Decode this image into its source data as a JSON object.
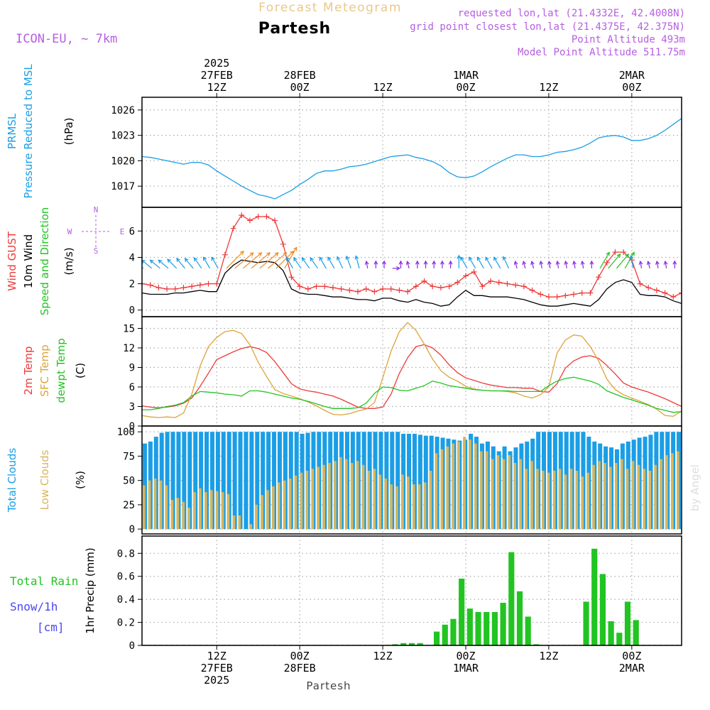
{
  "header": {
    "subtitle": "Forecast Meteogram",
    "location": "Partesh",
    "model": "ICON-EU, ~ 7km",
    "requested": "requested lon,lat (21.4332E, 42.4008N)",
    "grid_point": "grid point closest lon,lat (21.4375E, 42.375N)",
    "point_altitude": "Point Altitude 493m",
    "model_altitude": "Model Point Altitude 511.75m",
    "credit": "by Angel",
    "footer_location": "Partesh"
  },
  "time_axis": {
    "start_hour": 0,
    "end_hour": 65,
    "unit_note": "hours after 2025-02-27 00Z (approx.)",
    "top_labels": [
      {
        "hour": 9,
        "lines": [
          "2025",
          "27FEB",
          "12Z"
        ]
      },
      {
        "hour": 19,
        "lines": [
          "28FEB",
          "00Z"
        ]
      },
      {
        "hour": 29,
        "lines": [
          "12Z"
        ]
      },
      {
        "hour": 39,
        "lines": [
          "1MAR",
          "00Z"
        ]
      },
      {
        "hour": 49,
        "lines": [
          "12Z"
        ]
      },
      {
        "hour": 59,
        "lines": [
          "2MAR",
          "00Z"
        ]
      }
    ],
    "bottom_labels": [
      {
        "hour": 9,
        "lines": [
          "12Z",
          "27FEB",
          "2025"
        ]
      },
      {
        "hour": 19,
        "lines": [
          "00Z",
          "28FEB"
        ]
      },
      {
        "hour": 29,
        "lines": [
          "12Z"
        ]
      },
      {
        "hour": 39,
        "lines": [
          "00Z",
          "1MAR"
        ]
      },
      {
        "hour": 49,
        "lines": [
          "12Z"
        ]
      },
      {
        "hour": 59,
        "lines": [
          "00Z",
          "2MAR"
        ]
      }
    ]
  },
  "colors": {
    "pressure": "#1a9ee6",
    "gust": "#ee3a3a",
    "wind": "#000000",
    "temp2m": "#ee3a3a",
    "sfc": "#dba43a",
    "dewpt": "#22c422",
    "total_clouds": "#1a9ee6",
    "low_clouds": "#d8b55e",
    "rain": "#22c422",
    "snow": "#4848ee",
    "purple": "#b65ee0",
    "grid": "#aaaaaa"
  },
  "chart_data": [
    {
      "id": "pressure",
      "type": "line",
      "label_lines": [
        {
          "text": "PRMSL",
          "color": "pressure"
        },
        {
          "text": "Pressure Reduced to MSL",
          "color": "pressure"
        },
        {
          "text": "(hPa)",
          "color": "wind"
        }
      ],
      "ylim": [
        1014.5,
        1027.5
      ],
      "yticks": [
        1017,
        1020,
        1023,
        1026
      ],
      "series": [
        {
          "name": "PRMSL",
          "color": "pressure",
          "values": [
            1020.5,
            1020.4,
            1020.2,
            1020.0,
            1019.8,
            1019.6,
            1019.8,
            1019.8,
            1019.5,
            1018.8,
            1018.2,
            1017.6,
            1017.0,
            1016.5,
            1016.0,
            1015.8,
            1015.5,
            1016.0,
            1016.5,
            1017.2,
            1017.8,
            1018.5,
            1018.8,
            1018.8,
            1019.0,
            1019.3,
            1019.4,
            1019.6,
            1019.9,
            1020.2,
            1020.5,
            1020.6,
            1020.7,
            1020.4,
            1020.2,
            1019.9,
            1019.4,
            1018.6,
            1018.1,
            1018.0,
            1018.2,
            1018.7,
            1019.3,
            1019.8,
            1020.3,
            1020.7,
            1020.7,
            1020.5,
            1020.5,
            1020.7,
            1021.0,
            1021.1,
            1021.3,
            1021.6,
            1022.1,
            1022.7,
            1022.9,
            1023.0,
            1022.8,
            1022.4,
            1022.4,
            1022.6,
            1023.0,
            1023.6,
            1024.3,
            1025.0
          ]
        }
      ]
    },
    {
      "id": "wind",
      "type": "line",
      "label_lines": [
        {
          "text": "Wind GUST",
          "color": "gust"
        },
        {
          "text": "10m Wind",
          "color": "wind"
        },
        {
          "text": "Speed and Direction",
          "color": "dewpt"
        },
        {
          "text": "(m/s)",
          "color": "wind"
        }
      ],
      "compass": {
        "n": "N",
        "s": "S",
        "w": "W",
        "e": "E"
      },
      "ylim": [
        -0.5,
        7.8
      ],
      "yticks": [
        0,
        2,
        4,
        6
      ],
      "series": [
        {
          "name": "Wind GUST",
          "color": "gust",
          "marker": "+",
          "values": [
            2.0,
            1.9,
            1.7,
            1.6,
            1.6,
            1.7,
            1.8,
            1.9,
            2.0,
            2.0,
            4.2,
            6.2,
            7.2,
            6.8,
            7.1,
            7.1,
            6.8,
            5.0,
            2.5,
            1.8,
            1.6,
            1.8,
            1.8,
            1.7,
            1.6,
            1.5,
            1.4,
            1.6,
            1.4,
            1.6,
            1.6,
            1.5,
            1.4,
            1.8,
            2.2,
            1.8,
            1.7,
            1.8,
            2.1,
            2.6,
            2.9,
            1.8,
            2.2,
            2.1,
            2.0,
            1.9,
            1.8,
            1.5,
            1.2,
            1.0,
            1.0,
            1.1,
            1.2,
            1.3,
            1.3,
            2.5,
            3.6,
            4.4,
            4.4,
            3.8,
            2.0,
            1.7,
            1.5,
            1.3,
            1.0,
            1.3
          ]
        },
        {
          "name": "10m Wind",
          "color": "wind",
          "values": [
            1.3,
            1.2,
            1.2,
            1.2,
            1.3,
            1.3,
            1.4,
            1.5,
            1.4,
            1.4,
            2.8,
            3.4,
            3.8,
            3.7,
            3.6,
            3.7,
            3.6,
            3.0,
            1.6,
            1.3,
            1.2,
            1.2,
            1.1,
            1.0,
            1.0,
            0.9,
            0.8,
            0.8,
            0.7,
            0.9,
            0.9,
            0.7,
            0.6,
            0.8,
            0.6,
            0.5,
            0.3,
            0.4,
            1.0,
            1.5,
            1.1,
            1.1,
            1.0,
            1.0,
            1.0,
            0.9,
            0.8,
            0.6,
            0.4,
            0.3,
            0.3,
            0.4,
            0.5,
            0.4,
            0.3,
            0.8,
            1.6,
            2.1,
            2.3,
            2.1,
            1.2,
            1.1,
            1.1,
            1.0,
            0.7,
            0.5
          ]
        }
      ],
      "arrows": {
        "y_value": 3.6,
        "directions_deg": [
          40,
          40,
          40,
          40,
          45,
          50,
          50,
          55,
          60,
          60,
          135,
          140,
          140,
          140,
          140,
          140,
          135,
          120,
          60,
          55,
          55,
          55,
          60,
          60,
          65,
          70,
          75,
          80,
          90,
          90,
          180,
          90,
          75,
          90,
          90,
          90,
          90,
          90,
          90,
          60,
          60,
          60,
          60,
          60,
          65,
          75,
          75,
          75,
          80,
          80,
          80,
          80,
          80,
          80,
          90,
          120,
          130,
          130,
          120,
          80,
          80,
          75,
          80,
          80,
          90,
          90
        ],
        "speed_class": [
          1,
          1,
          1,
          1,
          1,
          1,
          1,
          1,
          1,
          1,
          3,
          3,
          3,
          3,
          3,
          3,
          3,
          3,
          1,
          1,
          1,
          1,
          1,
          1,
          1,
          1,
          1,
          0,
          0,
          0,
          0,
          0,
          0,
          0,
          0,
          0,
          0,
          0,
          1,
          1,
          1,
          1,
          1,
          1,
          1,
          0,
          0,
          0,
          0,
          0,
          0,
          0,
          0,
          0,
          0,
          2,
          2,
          2,
          2,
          1,
          0,
          0,
          0,
          0,
          0,
          0
        ],
        "class_colors": [
          "#8a2be2",
          "#1a9ee6",
          "#22c422",
          "#ee8a22"
        ]
      }
    },
    {
      "id": "temperature",
      "type": "line",
      "label_lines": [
        {
          "text": "2m Temp",
          "color": "temp2m"
        },
        {
          "text": "SFC Temp",
          "color": "sfc"
        },
        {
          "text": "dewpt Temp",
          "color": "dewpt"
        },
        {
          "text": "(C)",
          "color": "wind"
        }
      ],
      "ylim": [
        0,
        16.8
      ],
      "yticks": [
        0,
        3,
        6,
        9,
        12,
        15
      ],
      "series": [
        {
          "name": "2m Temp",
          "color": "temp2m",
          "values": [
            3.1,
            2.9,
            2.8,
            2.9,
            3.1,
            3.5,
            4.3,
            6.1,
            8.1,
            10.2,
            10.8,
            11.4,
            11.9,
            12.2,
            11.9,
            11.3,
            9.9,
            8.2,
            6.5,
            5.7,
            5.4,
            5.2,
            4.9,
            4.6,
            4.1,
            3.5,
            2.9,
            2.7,
            2.7,
            2.9,
            4.9,
            8.1,
            10.5,
            12.2,
            12.5,
            12.0,
            10.9,
            9.4,
            8.2,
            7.4,
            7.0,
            6.6,
            6.3,
            6.1,
            5.9,
            5.9,
            5.8,
            5.8,
            5.3,
            5.2,
            6.5,
            8.9,
            10.0,
            10.6,
            10.8,
            10.4,
            9.3,
            8.0,
            6.6,
            6.0,
            5.6,
            5.2,
            4.7,
            4.2,
            3.6,
            3.0
          ]
        },
        {
          "name": "SFC Temp",
          "color": "sfc",
          "values": [
            1.6,
            1.4,
            1.3,
            1.4,
            1.3,
            2.0,
            4.9,
            9.2,
            12.2,
            13.6,
            14.5,
            14.7,
            14.2,
            12.5,
            9.8,
            7.6,
            5.6,
            5.0,
            4.6,
            4.2,
            3.7,
            3.1,
            2.4,
            1.8,
            1.7,
            1.9,
            2.3,
            2.6,
            3.6,
            7.4,
            11.5,
            14.5,
            15.9,
            14.7,
            12.6,
            10.3,
            8.5,
            7.5,
            6.9,
            6.1,
            5.7,
            5.5,
            5.4,
            5.4,
            5.3,
            5.1,
            4.6,
            4.3,
            4.8,
            6.0,
            11.2,
            13.2,
            14.0,
            13.8,
            12.2,
            10.0,
            7.2,
            5.6,
            4.8,
            4.3,
            3.8,
            3.3,
            2.6,
            1.6,
            1.5,
            2.3
          ]
        },
        {
          "name": "dewpt Temp",
          "color": "dewpt",
          "values": [
            2.5,
            2.5,
            2.7,
            3.0,
            3.2,
            3.6,
            4.6,
            5.3,
            5.2,
            5.1,
            4.9,
            4.8,
            4.6,
            5.4,
            5.4,
            5.2,
            4.9,
            4.6,
            4.3,
            4.1,
            3.8,
            3.4,
            3.0,
            2.7,
            2.7,
            2.7,
            2.8,
            3.5,
            5.0,
            6.0,
            5.9,
            5.5,
            5.4,
            5.8,
            6.2,
            6.9,
            6.6,
            6.2,
            6.0,
            5.8,
            5.6,
            5.5,
            5.4,
            5.4,
            5.4,
            5.3,
            5.3,
            5.3,
            5.3,
            6.2,
            6.9,
            7.3,
            7.5,
            7.2,
            6.9,
            6.4,
            5.4,
            4.9,
            4.4,
            4.0,
            3.6,
            3.2,
            2.7,
            2.4,
            2.1,
            2.2
          ]
        }
      ]
    },
    {
      "id": "clouds",
      "type": "bar",
      "label_lines": [
        {
          "text": "Total Clouds",
          "color": "total_clouds"
        },
        {
          "text": "Low Clouds",
          "color": "low_clouds"
        },
        {
          "text": "(%)",
          "color": "wind"
        }
      ],
      "ylim": [
        -5,
        106
      ],
      "yticks": [
        0,
        25,
        50,
        75,
        100
      ],
      "series": [
        {
          "name": "Total Clouds",
          "color": "total_clouds",
          "values": [
            88,
            90,
            95,
            99,
            100,
            100,
            100,
            100,
            100,
            100,
            100,
            100,
            100,
            100,
            100,
            100,
            100,
            100,
            100,
            100,
            100,
            100,
            100,
            100,
            100,
            100,
            100,
            100,
            98,
            99,
            100,
            100,
            100,
            100,
            100,
            100,
            100,
            100,
            100,
            100,
            100,
            100,
            100,
            100,
            100,
            100,
            98,
            98,
            98,
            97,
            96,
            96,
            95,
            94,
            93,
            92,
            91,
            92,
            98,
            95,
            88,
            90,
            85,
            80,
            85,
            80,
            84,
            88,
            90,
            93,
            100,
            100,
            100,
            100,
            100,
            100,
            100,
            100,
            100,
            95,
            90,
            88,
            85,
            84,
            82,
            88,
            90,
            92,
            94,
            95,
            97,
            100,
            100,
            100,
            100,
            100
          ]
        },
        {
          "name": "Low Clouds",
          "color": "low_clouds",
          "values": [
            45,
            50,
            52,
            50,
            45,
            30,
            32,
            28,
            22,
            38,
            42,
            38,
            40,
            39,
            38,
            36,
            14,
            14,
            0,
            5,
            25,
            35,
            40,
            44,
            48,
            50,
            52,
            55,
            58,
            60,
            62,
            64,
            66,
            68,
            70,
            74,
            72,
            68,
            70,
            66,
            60,
            62,
            56,
            52,
            46,
            44,
            56,
            54,
            46,
            46,
            48,
            60,
            78,
            82,
            85,
            88,
            90,
            95,
            92,
            88,
            80,
            80,
            72,
            76,
            72,
            76,
            68,
            72,
            62,
            70,
            62,
            60,
            58,
            60,
            62,
            56,
            62,
            60,
            54,
            58,
            66,
            70,
            68,
            64,
            68,
            72,
            62,
            70,
            66,
            62,
            60,
            66,
            72,
            76,
            78,
            80
          ]
        }
      ]
    },
    {
      "id": "precip",
      "type": "bar",
      "label_lines": [
        {
          "text": "1hr Precip (mm)",
          "color": "wind"
        }
      ],
      "legend": {
        "rain": "Total  Rain",
        "snow": "Snow/1h",
        "snow_unit": "[cm]"
      },
      "ylim": [
        0,
        0.95
      ],
      "yticks": [
        0,
        0.2,
        0.4,
        0.6,
        0.8
      ],
      "series": [
        {
          "name": "Total Rain",
          "color": "rain",
          "values": [
            0,
            0,
            0,
            0,
            0,
            0,
            0,
            0,
            0,
            0,
            0,
            0,
            0,
            0,
            0,
            0,
            0,
            0,
            0,
            0,
            0,
            0,
            0,
            0,
            0,
            0,
            0,
            0,
            0,
            0,
            0.01,
            0.02,
            0.02,
            0.02,
            0,
            0.12,
            0.18,
            0.23,
            0.58,
            0.32,
            0.29,
            0.29,
            0.29,
            0.37,
            0.81,
            0.47,
            0.25,
            0.01,
            0,
            0,
            0,
            0,
            0,
            0.38,
            0.84,
            0.62,
            0.21,
            0.11,
            0.38,
            0.22,
            0,
            0,
            0,
            0,
            0,
            0,
            0
          ]
        },
        {
          "name": "Snow/1h",
          "color": "snow",
          "values": []
        }
      ],
      "x_start_hour": 0.5
    }
  ]
}
